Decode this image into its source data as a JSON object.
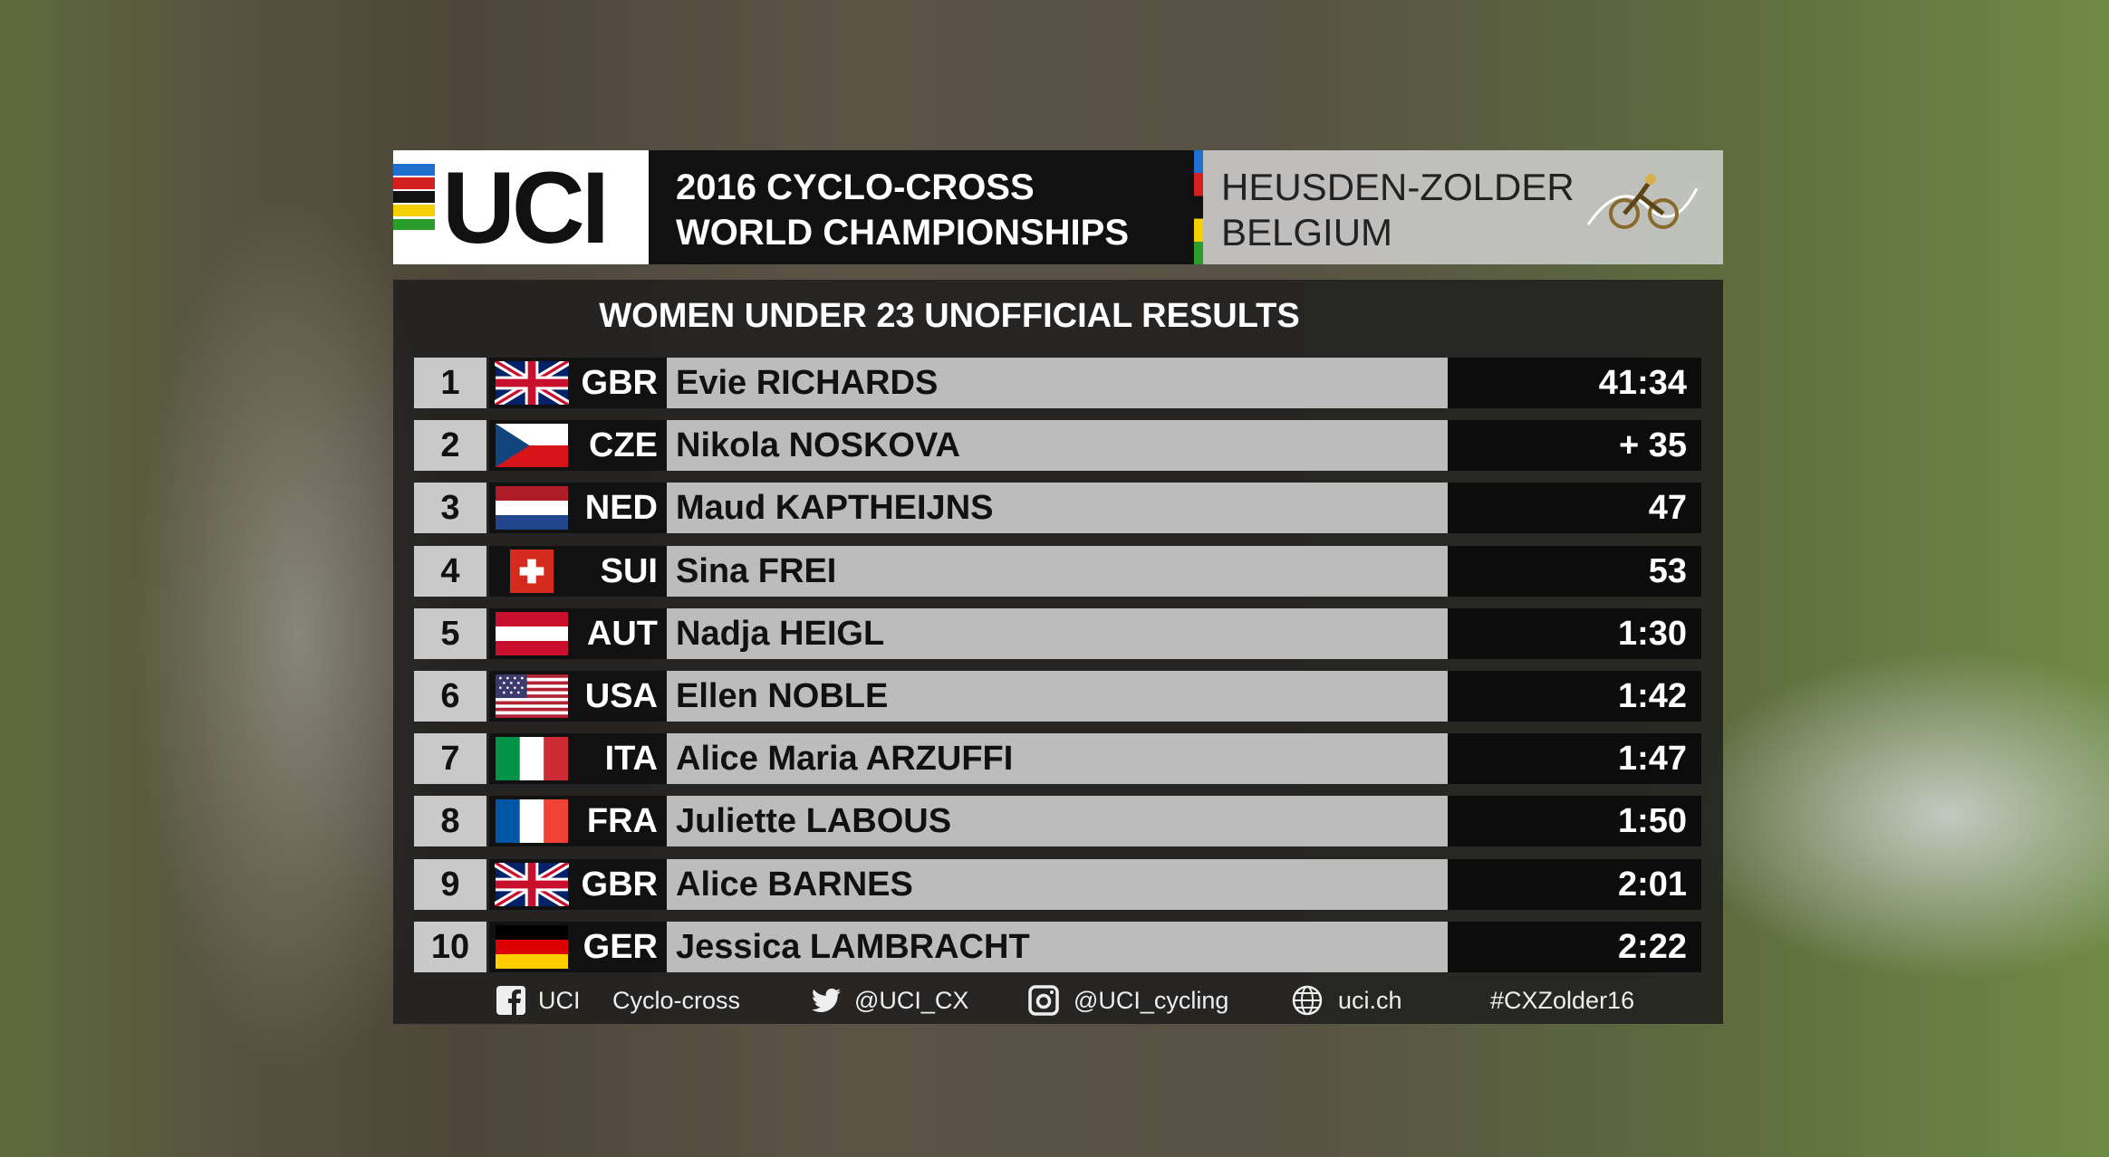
{
  "header": {
    "logo": "UCI",
    "title": [
      "2016 CYCLO-CROSS",
      "WORLD CHAMPIONSHIPS"
    ],
    "location": [
      "HEUSDEN-ZOLDER",
      "BELGIUM"
    ]
  },
  "results": {
    "title": "WOMEN UNDER 23 UNOFFICIAL RESULTS",
    "rows": [
      {
        "rank": 1,
        "country": "GBR",
        "name": "Evie RICHARDS",
        "time": "41:34"
      },
      {
        "rank": 2,
        "country": "CZE",
        "name": "Nikola NOSKOVA",
        "time": "+ 35"
      },
      {
        "rank": 3,
        "country": "NED",
        "name": "Maud KAPTHEIJNS",
        "time": "47"
      },
      {
        "rank": 4,
        "country": "SUI",
        "name": "Sina FREI",
        "time": "53"
      },
      {
        "rank": 5,
        "country": "AUT",
        "name": "Nadja HEIGL",
        "time": "1:30"
      },
      {
        "rank": 6,
        "country": "USA",
        "name": "Ellen NOBLE",
        "time": "1:42"
      },
      {
        "rank": 7,
        "country": "ITA",
        "name": "Alice Maria ARZUFFI",
        "time": "1:47"
      },
      {
        "rank": 8,
        "country": "FRA",
        "name": "Juliette LABOUS",
        "time": "1:50"
      },
      {
        "rank": 9,
        "country": "GBR",
        "name": "Alice BARNES",
        "time": "2:01"
      },
      {
        "rank": 10,
        "country": "GER",
        "name": "Jessica LAMBRACHT",
        "time": "2:22"
      }
    ]
  },
  "footer": [
    "UCI",
    "Cyclo-cross",
    "@UCI_CX",
    "@UCI_cycling",
    "uci.ch",
    "#CXZolder16"
  ]
}
